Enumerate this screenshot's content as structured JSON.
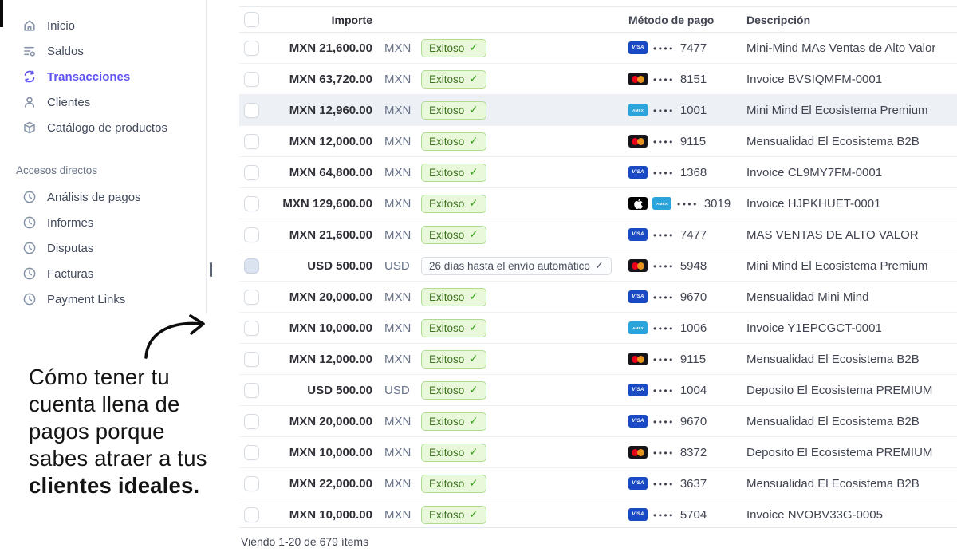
{
  "sidebar": {
    "items": [
      {
        "label": "Inicio",
        "icon": "home"
      },
      {
        "label": "Saldos",
        "icon": "balances"
      },
      {
        "label": "Transacciones",
        "icon": "transactions",
        "active": true
      },
      {
        "label": "Clientes",
        "icon": "customers"
      },
      {
        "label": "Catálogo de productos",
        "icon": "product-catalog"
      }
    ],
    "shortcuts_title": "Accesos directos",
    "shortcuts": [
      {
        "label": "Análisis de pagos",
        "icon": "clock"
      },
      {
        "label": "Informes",
        "icon": "clock"
      },
      {
        "label": "Disputas",
        "icon": "clock"
      },
      {
        "label": "Facturas",
        "icon": "clock"
      },
      {
        "label": "Payment Links",
        "icon": "clock"
      }
    ]
  },
  "overlay": {
    "lines": [
      "Cómo tener tu",
      "cuenta llena de",
      "pagos porque",
      "sabes atraer a tus"
    ],
    "bold_line": "clientes ideales.",
    "arrow_icon": "curved-arrow-right"
  },
  "table": {
    "headers": {
      "importe": "Importe",
      "metodo": "Método de pago",
      "descripcion": "Descripción"
    },
    "rows": [
      {
        "amount": "MXN 21,600.00",
        "currency": "MXN",
        "status": "Exitoso",
        "status_type": "success",
        "cards": [
          "visa"
        ],
        "last4": "7477",
        "description": "Mini-Mind MAs Ventas de Alto Valor"
      },
      {
        "amount": "MXN 63,720.00",
        "currency": "MXN",
        "status": "Exitoso",
        "status_type": "success",
        "cards": [
          "mastercard"
        ],
        "last4": "8151",
        "description": "Invoice BVSIQMFM-0001"
      },
      {
        "amount": "MXN 12,960.00",
        "currency": "MXN",
        "status": "Exitoso",
        "status_type": "success",
        "cards": [
          "amex"
        ],
        "last4": "1001",
        "description": "Mini Mind El Ecosistema Premium",
        "highlighted": true
      },
      {
        "amount": "MXN 12,000.00",
        "currency": "MXN",
        "status": "Exitoso",
        "status_type": "success",
        "cards": [
          "mastercard"
        ],
        "last4": "9115",
        "description": "Mensualidad El Ecosistema B2B"
      },
      {
        "amount": "MXN 64,800.00",
        "currency": "MXN",
        "status": "Exitoso",
        "status_type": "success",
        "cards": [
          "visa"
        ],
        "last4": "1368",
        "description": "Invoice CL9MY7FM-0001"
      },
      {
        "amount": "MXN 129,600.00",
        "currency": "MXN",
        "status": "Exitoso",
        "status_type": "success",
        "cards": [
          "apple",
          "amex"
        ],
        "last4": "3019",
        "description": "Invoice HJPKHUET-0001"
      },
      {
        "amount": "MXN 21,600.00",
        "currency": "MXN",
        "status": "Exitoso",
        "status_type": "success",
        "cards": [
          "visa"
        ],
        "last4": "7477",
        "description": "MAS VENTAS DE ALTO VALOR"
      },
      {
        "amount": "USD 500.00",
        "currency": "USD",
        "status": "26 días hasta el envío automático",
        "status_type": "neutral",
        "cards": [
          "mastercard"
        ],
        "last4": "5948",
        "description": "Mini Mind El Ecosistema Premium",
        "checkbox_tinted": true
      },
      {
        "amount": "MXN 20,000.00",
        "currency": "MXN",
        "status": "Exitoso",
        "status_type": "success",
        "cards": [
          "visa"
        ],
        "last4": "9670",
        "description": "Mensualidad Mini Mind"
      },
      {
        "amount": "MXN 10,000.00",
        "currency": "MXN",
        "status": "Exitoso",
        "status_type": "success",
        "cards": [
          "amex"
        ],
        "last4": "1006",
        "description": "Invoice Y1EPCGCT-0001"
      },
      {
        "amount": "MXN 12,000.00",
        "currency": "MXN",
        "status": "Exitoso",
        "status_type": "success",
        "cards": [
          "mastercard"
        ],
        "last4": "9115",
        "description": "Mensualidad El Ecosistema B2B"
      },
      {
        "amount": "USD 500.00",
        "currency": "USD",
        "status": "Exitoso",
        "status_type": "success",
        "cards": [
          "visa"
        ],
        "last4": "1004",
        "description": "Deposito El Ecosistema PREMIUM"
      },
      {
        "amount": "MXN 20,000.00",
        "currency": "MXN",
        "status": "Exitoso",
        "status_type": "success",
        "cards": [
          "visa"
        ],
        "last4": "9670",
        "description": "Mensualidad El Ecosistema B2B"
      },
      {
        "amount": "MXN 10,000.00",
        "currency": "MXN",
        "status": "Exitoso",
        "status_type": "success",
        "cards": [
          "mastercard"
        ],
        "last4": "8372",
        "description": "Deposito El Ecosistema PREMIUM"
      },
      {
        "amount": "MXN 22,000.00",
        "currency": "MXN",
        "status": "Exitoso",
        "status_type": "success",
        "cards": [
          "visa"
        ],
        "last4": "3637",
        "description": "Mensualidad El Ecosistema B2B"
      },
      {
        "amount": "MXN 10,000.00",
        "currency": "MXN",
        "status": "Exitoso",
        "status_type": "success",
        "cards": [
          "visa"
        ],
        "last4": "5704",
        "description": "Invoice NVOBV33G-0005"
      }
    ],
    "footer": "Viendo 1-20 de 679 ítems"
  },
  "colors": {
    "accent": "#5f54f2",
    "success_bg": "#e9f8da",
    "success_border": "#aedd92",
    "success_text": "#3e7420",
    "success_check": "#35a018",
    "neutral_badge_border": "#d6dce2",
    "neutral_badge_text": "#474e5c",
    "row_highlight": "#edf0f5",
    "visa_blue": "#1a49c4",
    "amex_blue": "#2ba3db",
    "mastercard_red": "#eb001b",
    "mastercard_orange": "#f79e1b"
  }
}
